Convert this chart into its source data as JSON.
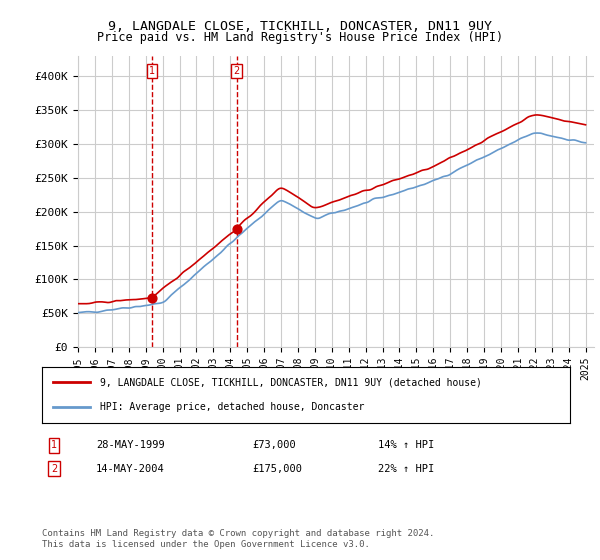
{
  "title_line1": "9, LANGDALE CLOSE, TICKHILL, DONCASTER, DN11 9UY",
  "title_line2": "Price paid vs. HM Land Registry's House Price Index (HPI)",
  "ylabel": "",
  "ylim": [
    0,
    420000
  ],
  "yticks": [
    0,
    50000,
    100000,
    150000,
    200000,
    250000,
    300000,
    350000,
    400000
  ],
  "ytick_labels": [
    "£0",
    "£50K",
    "£100K",
    "£150K",
    "£200K",
    "£250K",
    "£300K",
    "£350K",
    "£400K"
  ],
  "legend_entry1": "9, LANGDALE CLOSE, TICKHILL, DONCASTER, DN11 9UY (detached house)",
  "legend_entry2": "HPI: Average price, detached house, Doncaster",
  "sale1_date": "28-MAY-1999",
  "sale1_price": "£73,000",
  "sale1_hpi": "14% ↑ HPI",
  "sale2_date": "14-MAY-2004",
  "sale2_price": "£175,000",
  "sale2_hpi": "22% ↑ HPI",
  "footnote": "Contains HM Land Registry data © Crown copyright and database right 2024.\nThis data is licensed under the Open Government Licence v3.0.",
  "hpi_color": "#6699cc",
  "price_color": "#cc0000",
  "vline_color": "#cc0000",
  "bg_color": "#dce6f1",
  "plot_bg_color": "#ffffff",
  "grid_color": "#cccccc",
  "sale1_year": 1999.4,
  "sale2_year": 2004.37,
  "sale1_value": 73000,
  "sale2_value": 175000
}
